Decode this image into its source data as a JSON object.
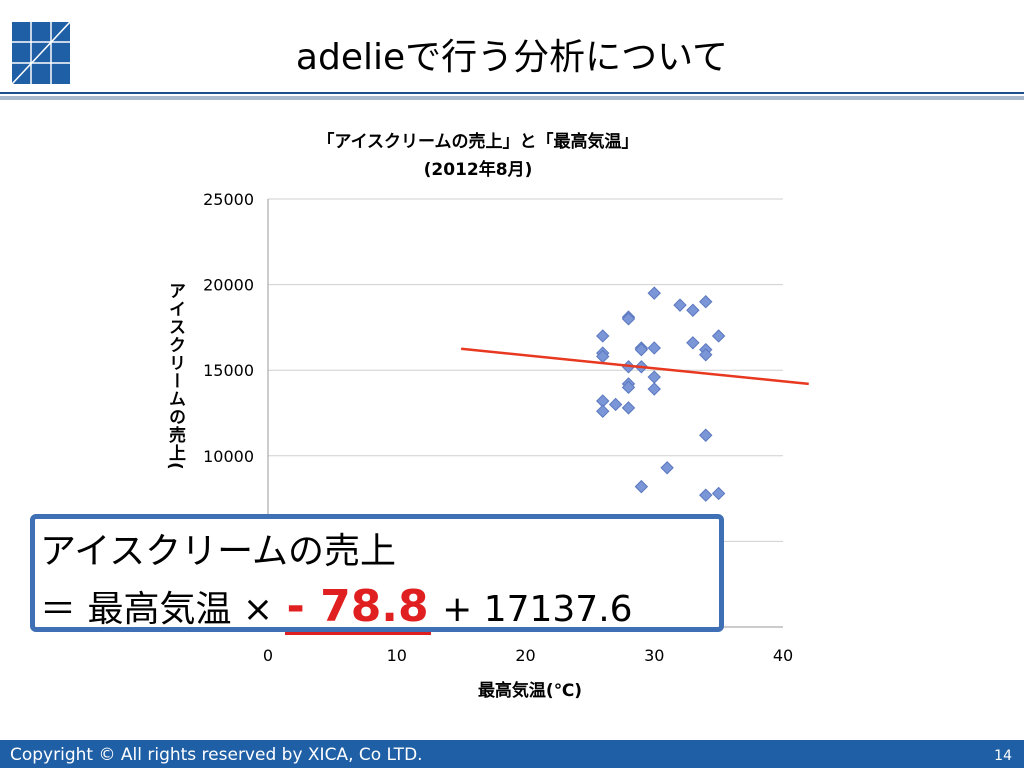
{
  "slide": {
    "title": "adelieで行う分析について",
    "page_number": "14",
    "copyright": "Copyright © All rights reserved by XICA, Co LTD."
  },
  "chart_data": {
    "type": "scatter",
    "title_line1": "「アイスクリームの売上」と「最高気温」",
    "title_line2": "(2012年8月)",
    "xlabel": "最高気温(℃)",
    "ylabel": "アイスクリームの売上(",
    "xlim": [
      0,
      40
    ],
    "ylim": [
      0,
      25000
    ],
    "x_ticks": [
      "0",
      "10",
      "20",
      "30",
      "40"
    ],
    "y_ticks": [
      "25000",
      "20000",
      "15000",
      "10000"
    ],
    "grid": "horizontal",
    "series": [
      {
        "marker": "diamond",
        "color": "#7b96d6",
        "points": [
          [
            26,
            17000
          ],
          [
            26,
            16000
          ],
          [
            26,
            15800
          ],
          [
            26,
            13200
          ],
          [
            26,
            12600
          ],
          [
            27,
            13000
          ],
          [
            28,
            18100
          ],
          [
            28,
            18000
          ],
          [
            28,
            15200
          ],
          [
            28,
            14200
          ],
          [
            28,
            14000
          ],
          [
            28,
            12800
          ],
          [
            29,
            16300
          ],
          [
            29,
            16200
          ],
          [
            29,
            15200
          ],
          [
            29,
            8200
          ],
          [
            30,
            19500
          ],
          [
            30,
            16300
          ],
          [
            30,
            14600
          ],
          [
            30,
            13900
          ],
          [
            31,
            9300
          ],
          [
            32,
            18800
          ],
          [
            33,
            18500
          ],
          [
            33,
            16600
          ],
          [
            34,
            19000
          ],
          [
            34,
            16200
          ],
          [
            34,
            15900
          ],
          [
            34,
            11200
          ],
          [
            34,
            7700
          ],
          [
            35,
            17000
          ],
          [
            35,
            7800
          ]
        ]
      }
    ],
    "trendline": {
      "color": "#e8381f",
      "x": [
        15,
        42
      ],
      "y": [
        16250,
        14200
      ]
    }
  },
  "formula": {
    "line1": "アイスクリームの売上",
    "prefix": "＝ 最高気温 × ",
    "coefficient": "- 78.8",
    "suffix": " + 17137.6"
  }
}
